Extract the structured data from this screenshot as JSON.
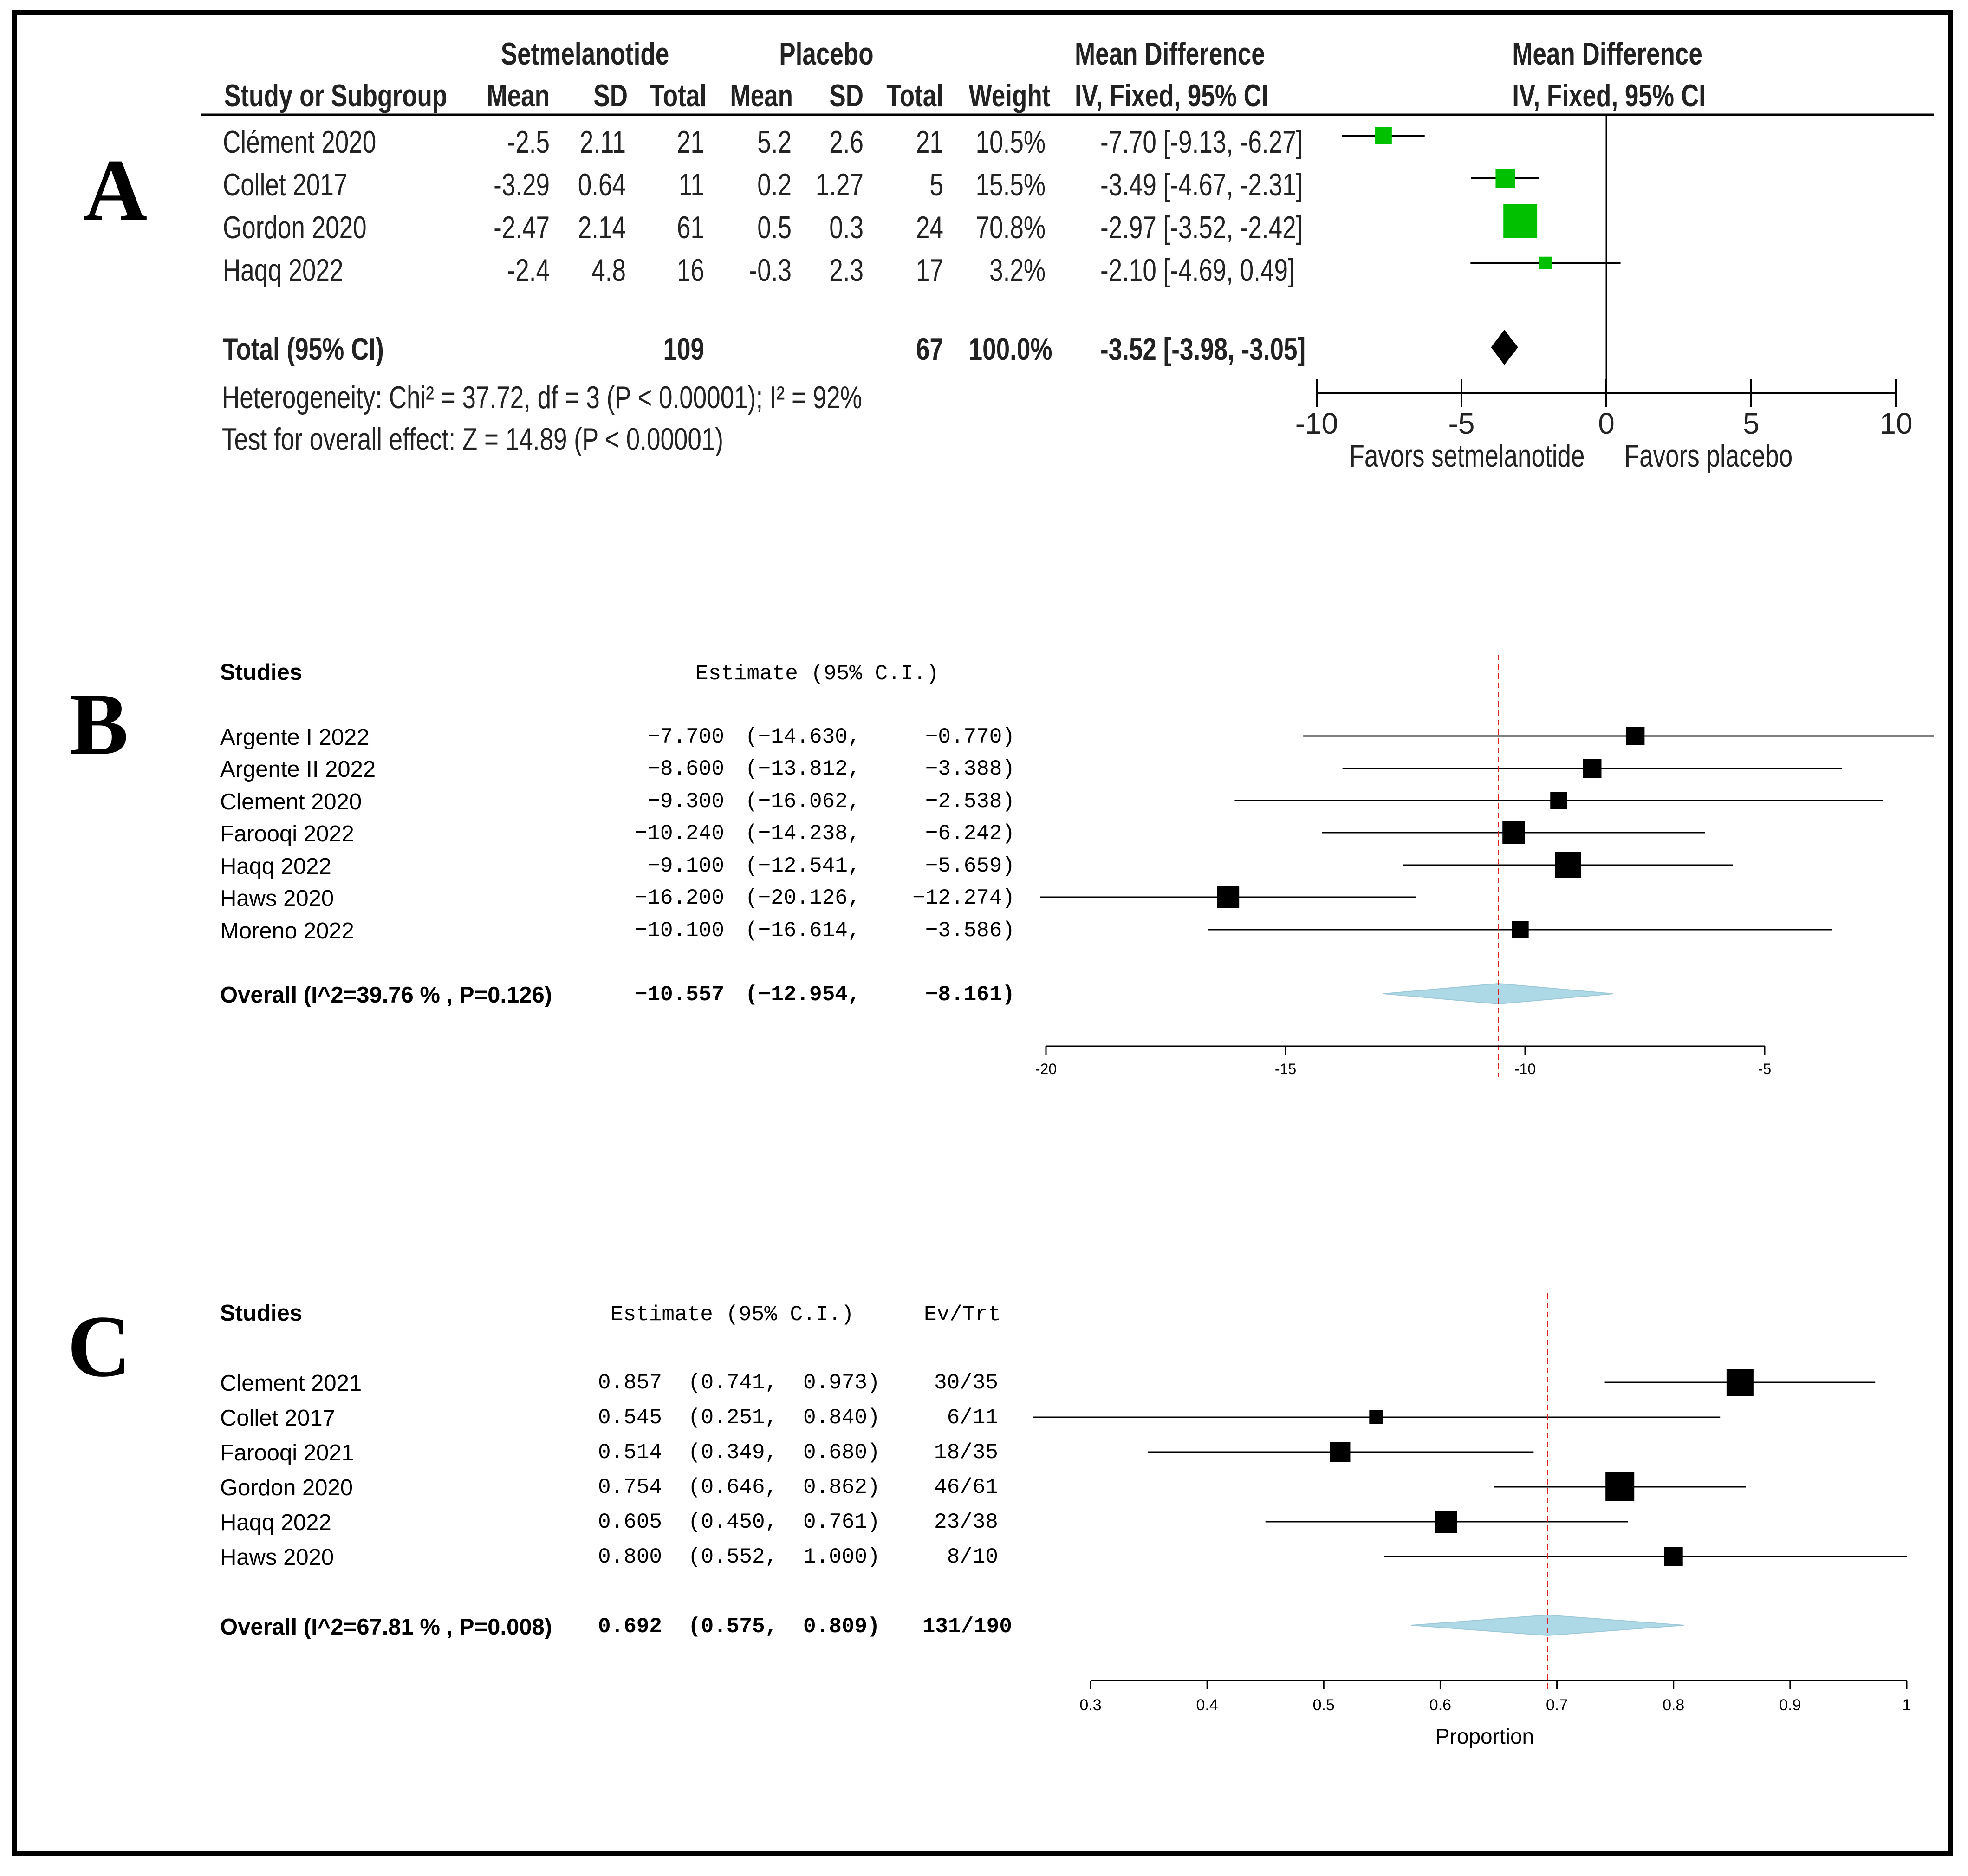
{
  "panel_labels": {
    "a": "A",
    "b": "B",
    "c": "C"
  },
  "panel_a": {
    "headers": {
      "group1": "Setmelanotide",
      "group2": "Placebo",
      "md_top": "Mean Difference",
      "md_sub": "IV, Fixed, 95% CI",
      "plot_top": "Mean Difference",
      "plot_sub": "IV, Fixed, 95% CI",
      "study": "Study or Subgroup",
      "mean1": "Mean",
      "sd1": "SD",
      "total1": "Total",
      "mean2": "Mean",
      "sd2": "SD",
      "total2": "Total",
      "weight": "Weight"
    },
    "rows": [
      {
        "study": "Clément 2020",
        "m1": "-2.5",
        "sd1": "2.11",
        "n1": "21",
        "m2": "5.2",
        "sd2": "2.6",
        "n2": "21",
        "weight": "10.5%",
        "ci": "-7.70 [-9.13, -6.27]"
      },
      {
        "study": "Collet 2017",
        "m1": "-3.29",
        "sd1": "0.64",
        "n1": "11",
        "m2": "0.2",
        "sd2": "1.27",
        "n2": "5",
        "weight": "15.5%",
        "ci": "-3.49 [-4.67, -2.31]"
      },
      {
        "study": "Gordon 2020",
        "m1": "-2.47",
        "sd1": "2.14",
        "n1": "61",
        "m2": "0.5",
        "sd2": "0.3",
        "n2": "24",
        "weight": "70.8%",
        "ci": "-2.97 [-3.52, -2.42]"
      },
      {
        "study": "Haqq 2022",
        "m1": "-2.4",
        "sd1": "4.8",
        "n1": "16",
        "m2": "-0.3",
        "sd2": "2.3",
        "n2": "17",
        "weight": "3.2%",
        "ci": "-2.10 [-4.69, 0.49]"
      }
    ],
    "total": {
      "label": "Total (95% CI)",
      "n1": "109",
      "n2": "67",
      "weight": "100.0%",
      "ci": "-3.52 [-3.98, -3.05]"
    },
    "heterogeneity": "Heterogeneity: Chi² = 37.72, df = 3 (P < 0.00001); I² = 92%",
    "overall_effect": "Test for overall effect: Z = 14.89 (P < 0.00001)",
    "favors_left": "Favors setmelanotide",
    "favors_right": "Favors placebo"
  },
  "panel_b": {
    "header_studies": "Studies",
    "header_estimate": "Estimate (95% C.I.)",
    "rows": [
      {
        "study": "Argente I 2022",
        "est": "−7.700",
        "lo": "(−14.630,",
        "hi": "−0.770)"
      },
      {
        "study": "Argente II 2022",
        "est": "−8.600",
        "lo": "(−13.812,",
        "hi": "−3.388)"
      },
      {
        "study": "Clement 2020",
        "est": "−9.300",
        "lo": "(−16.062,",
        "hi": "−2.538)"
      },
      {
        "study": "Farooqi 2022",
        "est": "−10.240",
        "lo": "(−14.238,",
        "hi": "−6.242)"
      },
      {
        "study": "Haqq 2022",
        "est": "−9.100",
        "lo": "(−12.541,",
        "hi": "−5.659)"
      },
      {
        "study": "Haws 2020",
        "est": "−16.200",
        "lo": "(−20.126,",
        "hi": "−12.274)"
      },
      {
        "study": "Moreno 2022",
        "est": "−10.100",
        "lo": "(−16.614,",
        "hi": "−3.586)"
      }
    ],
    "overall": {
      "label": "Overall (I^2=39.76 % , P=0.126)",
      "est": "−10.557",
      "lo": "(−12.954,",
      "hi": "−8.161)"
    }
  },
  "panel_c": {
    "header_studies": "Studies",
    "header_estimate": "Estimate (95% C.I.)",
    "header_evtrt": "Ev/Trt",
    "rows": [
      {
        "study": "Clement 2021",
        "est": "0.857",
        "lo": "(0.741,",
        "hi": "0.973)",
        "evtrt": "30/35"
      },
      {
        "study": "Collet 2017",
        "est": "0.545",
        "lo": "(0.251,",
        "hi": "0.840)",
        "evtrt": "6/11"
      },
      {
        "study": "Farooqi 2021",
        "est": "0.514",
        "lo": "(0.349,",
        "hi": "0.680)",
        "evtrt": "18/35"
      },
      {
        "study": "Gordon 2020",
        "est": "0.754",
        "lo": "(0.646,",
        "hi": "0.862)",
        "evtrt": "46/61"
      },
      {
        "study": "Haqq 2022",
        "est": "0.605",
        "lo": "(0.450,",
        "hi": "0.761)",
        "evtrt": "23/38"
      },
      {
        "study": "Haws 2020",
        "est": "0.800",
        "lo": "(0.552,",
        "hi": "1.000)",
        "evtrt": "8/10"
      }
    ],
    "overall": {
      "label": "Overall (I^2=67.81 % , P=0.008)",
      "est": "0.692",
      "lo": "(0.575,",
      "hi": "0.809)",
      "evtrt": "131/190"
    }
  },
  "chart_data": [
    {
      "type": "forest",
      "panel": "A",
      "title": "Mean Difference IV, Fixed, 95% CI",
      "xlim": [
        -10,
        10
      ],
      "xticks": [
        -10,
        -5,
        0,
        5,
        10
      ],
      "xtick_labels": [
        "-10",
        "-5",
        "0",
        "5",
        "10"
      ],
      "reference_line": 0,
      "marker_color": "#00c000",
      "studies": [
        {
          "name": "Clément 2020",
          "estimate": -7.7,
          "lower": -9.13,
          "upper": -6.27,
          "weight": 10.5
        },
        {
          "name": "Collet 2017",
          "estimate": -3.49,
          "lower": -4.67,
          "upper": -2.31,
          "weight": 15.5
        },
        {
          "name": "Gordon 2020",
          "estimate": -2.97,
          "lower": -3.52,
          "upper": -2.42,
          "weight": 70.8
        },
        {
          "name": "Haqq 2022",
          "estimate": -2.1,
          "lower": -4.69,
          "upper": 0.49,
          "weight": 3.2
        }
      ],
      "overall": {
        "estimate": -3.52,
        "lower": -3.98,
        "upper": -3.05
      }
    },
    {
      "type": "forest",
      "panel": "B",
      "xlim": [
        -20,
        -5
      ],
      "xticks": [
        -20,
        -15,
        -10,
        -5
      ],
      "xtick_labels": [
        "-20",
        "-15",
        "-10",
        "-5"
      ],
      "reference_line": -10.557,
      "marker_color": "#000000",
      "diamond_color": "#add8e6",
      "studies": [
        {
          "name": "Argente I 2022",
          "estimate": -7.7,
          "lower": -14.63,
          "upper": -0.77,
          "size": 1
        },
        {
          "name": "Argente II 2022",
          "estimate": -8.6,
          "lower": -13.812,
          "upper": -3.388,
          "size": 1
        },
        {
          "name": "Clement 2020",
          "estimate": -9.3,
          "lower": -16.062,
          "upper": -2.538,
          "size": 0.9
        },
        {
          "name": "Farooqi 2022",
          "estimate": -10.24,
          "lower": -14.238,
          "upper": -6.242,
          "size": 1.2
        },
        {
          "name": "Haqq 2022",
          "estimate": -9.1,
          "lower": -12.541,
          "upper": -5.659,
          "size": 1.4
        },
        {
          "name": "Haws 2020",
          "estimate": -16.2,
          "lower": -20.126,
          "upper": -12.274,
          "size": 1.2
        },
        {
          "name": "Moreno 2022",
          "estimate": -10.1,
          "lower": -16.614,
          "upper": -3.586,
          "size": 0.9
        }
      ],
      "overall": {
        "estimate": -10.557,
        "lower": -12.954,
        "upper": -8.161
      }
    },
    {
      "type": "forest",
      "panel": "C",
      "xlabel": "Proportion",
      "xlim": [
        0.3,
        1
      ],
      "xticks": [
        0.3,
        0.4,
        0.5,
        0.6,
        0.7,
        0.8,
        0.9,
        1
      ],
      "xtick_labels": [
        "0.3",
        "0.4",
        "0.5",
        "0.6",
        "0.7",
        "0.8",
        "0.9",
        "1"
      ],
      "reference_line": 0.692,
      "marker_color": "#000000",
      "diamond_color": "#add8e6",
      "studies": [
        {
          "name": "Clement 2021",
          "estimate": 0.857,
          "lower": 0.741,
          "upper": 0.973,
          "size": 1.45
        },
        {
          "name": "Collet 2017",
          "estimate": 0.545,
          "lower": 0.251,
          "upper": 0.84,
          "size": 0.75
        },
        {
          "name": "Farooqi 2021",
          "estimate": 0.514,
          "lower": 0.349,
          "upper": 0.68,
          "size": 1.1
        },
        {
          "name": "Gordon 2020",
          "estimate": 0.754,
          "lower": 0.646,
          "upper": 0.862,
          "size": 1.55
        },
        {
          "name": "Haqq 2022",
          "estimate": 0.605,
          "lower": 0.45,
          "upper": 0.761,
          "size": 1.2
        },
        {
          "name": "Haws 2020",
          "estimate": 0.8,
          "lower": 0.552,
          "upper": 1.0,
          "size": 1.0
        }
      ],
      "overall": {
        "estimate": 0.692,
        "lower": 0.575,
        "upper": 0.809
      }
    }
  ]
}
